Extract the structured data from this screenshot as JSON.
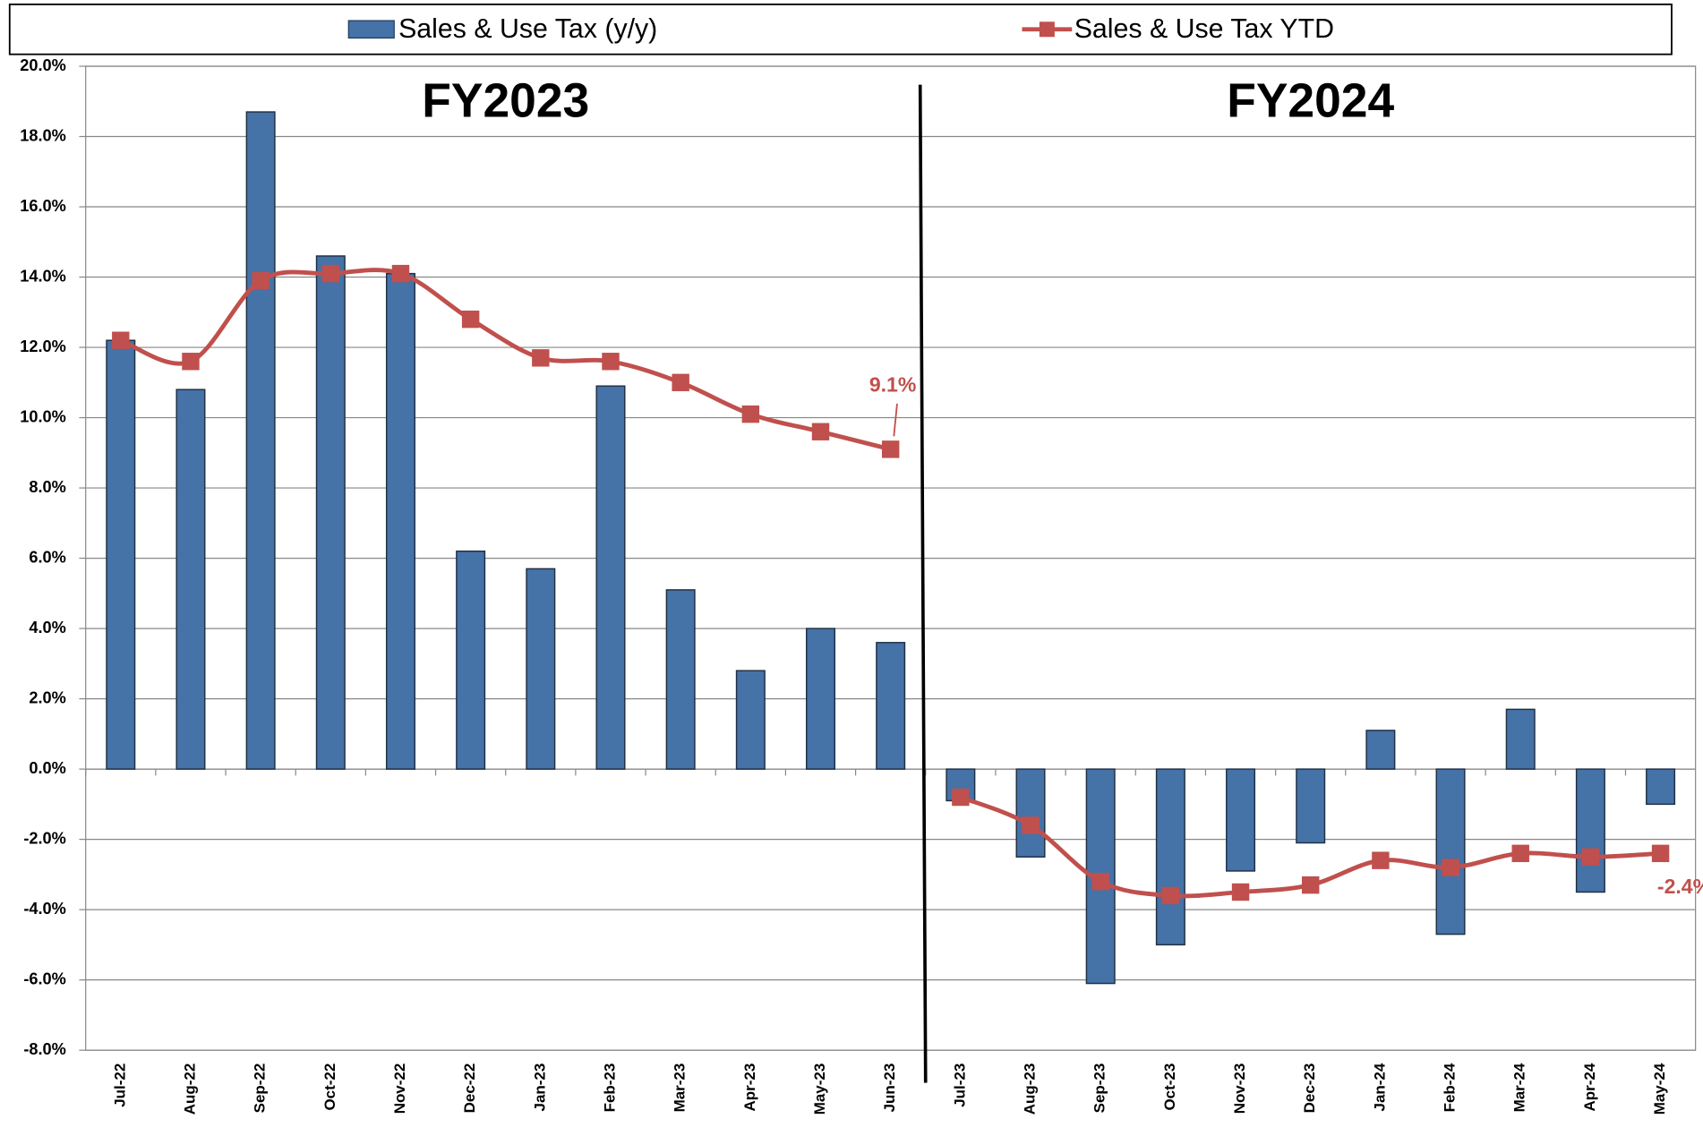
{
  "chart_data": {
    "type": "bar-line",
    "periods": [
      {
        "label": "FY2023",
        "categories": [
          "Jul-22",
          "Aug-22",
          "Sep-22",
          "Oct-22",
          "Nov-22",
          "Dec-22",
          "Jan-23",
          "Feb-23",
          "Mar-23",
          "Apr-23",
          "May-23",
          "Jun-23"
        ]
      },
      {
        "label": "FY2024",
        "categories": [
          "Jul-23",
          "Aug-23",
          "Sep-23",
          "Oct-23",
          "Nov-23",
          "Dec-23",
          "Jan-24",
          "Feb-24",
          "Mar-24",
          "Apr-24",
          "May-24"
        ]
      }
    ],
    "series": [
      {
        "name": "Sales & Use Tax (y/y)",
        "type": "bar",
        "color": "#4572a7",
        "values": [
          12.2,
          10.8,
          18.7,
          14.6,
          14.1,
          6.2,
          5.7,
          10.9,
          5.1,
          2.8,
          4.0,
          3.6,
          -0.9,
          -2.5,
          -6.1,
          -5.0,
          -2.9,
          -2.1,
          1.1,
          -4.7,
          1.7,
          -3.5,
          -1.0
        ]
      },
      {
        "name": "Sales & Use Tax YTD",
        "type": "line",
        "color": "#c0504d",
        "values": [
          12.2,
          11.6,
          13.9,
          14.1,
          14.1,
          12.8,
          11.7,
          11.6,
          11.0,
          10.1,
          9.6,
          9.1,
          -0.8,
          -1.6,
          -3.2,
          -3.6,
          -3.5,
          -3.3,
          -2.6,
          -2.8,
          -2.4,
          -2.5,
          -2.4
        ],
        "value_labels": [
          null,
          null,
          null,
          null,
          null,
          null,
          null,
          null,
          null,
          null,
          null,
          "9.1%",
          null,
          null,
          null,
          null,
          null,
          null,
          null,
          null,
          null,
          null,
          "-2.4%"
        ]
      }
    ],
    "ylim": [
      -8,
      20
    ],
    "yticks": [
      {
        "value": -8,
        "label": "-8.0%"
      },
      {
        "value": -6,
        "label": "-6.0%"
      },
      {
        "value": -4,
        "label": "-4.0%"
      },
      {
        "value": -2,
        "label": "-2.0%"
      },
      {
        "value": 0,
        "label": "0.0%"
      },
      {
        "value": 2,
        "label": "2.0%"
      },
      {
        "value": 4,
        "label": "4.0%"
      },
      {
        "value": 6,
        "label": "6.0%"
      },
      {
        "value": 8,
        "label": "8.0%"
      },
      {
        "value": 10,
        "label": "10.0%"
      },
      {
        "value": 12,
        "label": "12.0%"
      },
      {
        "value": 14,
        "label": "14.0%"
      },
      {
        "value": 16,
        "label": "16.0%"
      },
      {
        "value": 18,
        "label": "18.0%"
      },
      {
        "value": 20,
        "label": "20.0%"
      }
    ],
    "grid": true,
    "legend": "top"
  }
}
